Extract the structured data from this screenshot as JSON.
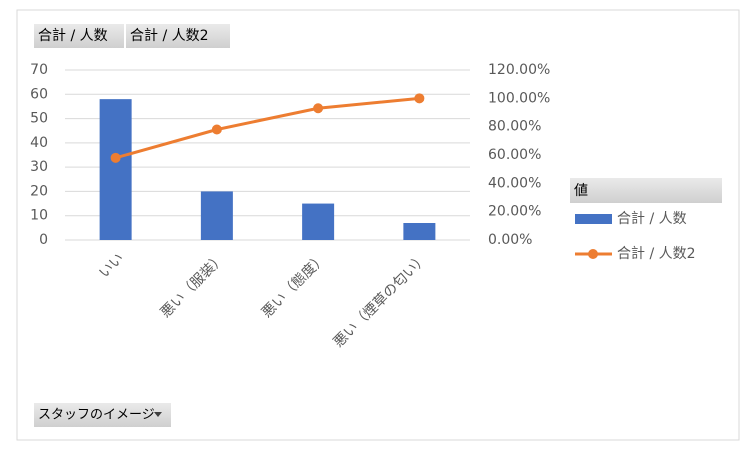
{
  "chart_data": {
    "type": "bar",
    "categories": [
      "いい",
      "悪い（服装）",
      "悪い（態度）",
      "悪い（煙草の匂い）"
    ],
    "series": [
      {
        "name": "合計 / 人数",
        "type": "bar",
        "color": "#4472c4",
        "values": [
          58,
          20,
          15,
          7
        ]
      },
      {
        "name": "合計 / 人数2",
        "type": "line",
        "color": "#ed7d31",
        "axis": "y2",
        "values": [
          58,
          78,
          93,
          100
        ]
      }
    ],
    "ylim": [
      0,
      70
    ],
    "yticks": [
      0,
      10,
      20,
      30,
      40,
      50,
      60,
      70
    ],
    "y2lim": [
      0,
      120
    ],
    "y2ticks": [
      {
        "value": 0,
        "label": "0.00%"
      },
      {
        "value": 20,
        "label": "20.00%"
      },
      {
        "value": 40,
        "label": "40.00%"
      },
      {
        "value": 60,
        "label": "60.00%"
      },
      {
        "value": 80,
        "label": "80.00%"
      },
      {
        "value": 100,
        "label": "100.00%"
      },
      {
        "value": 120,
        "label": "120.00%"
      }
    ],
    "grid": true,
    "legend_title": "値",
    "legend_position": "right",
    "filter_field": "スタッフのイメージ"
  }
}
